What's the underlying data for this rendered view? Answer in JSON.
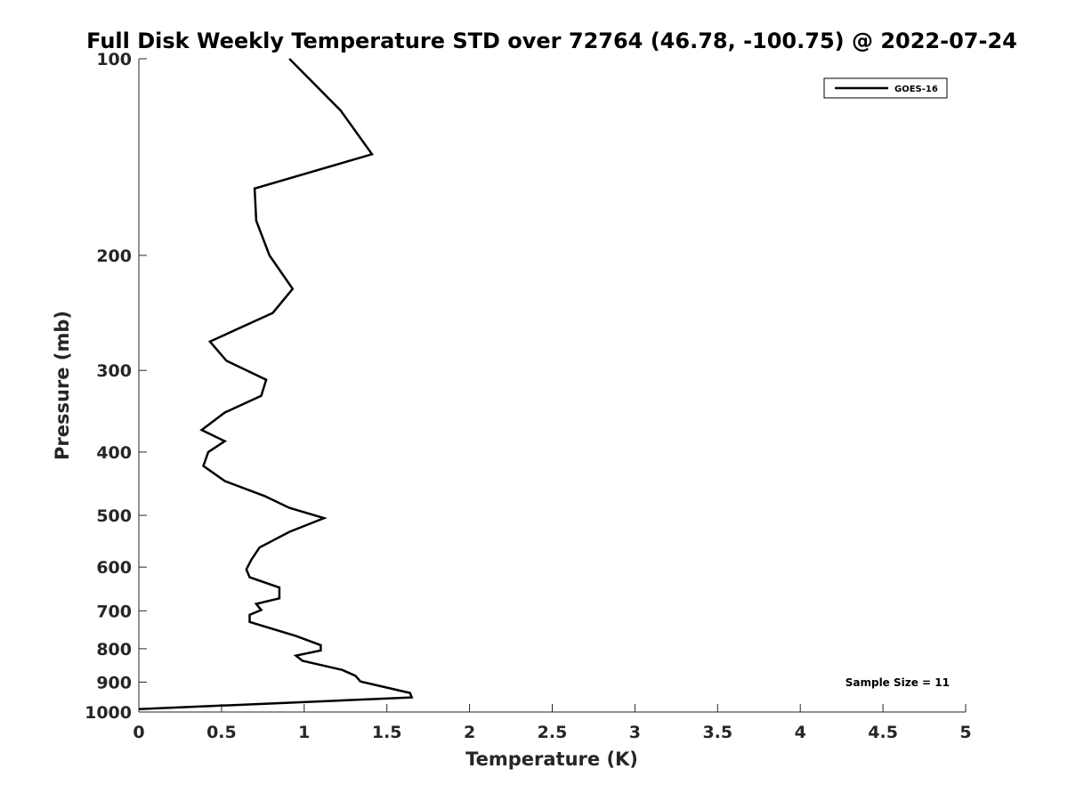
{
  "chart_data": {
    "type": "line",
    "title": "Full Disk Weekly Temperature STD over 72764 (46.78, -100.75) @ 2022-07-24",
    "xlabel": "Temperature (K)",
    "ylabel": "Pressure (mb)",
    "xlim": [
      0,
      5
    ],
    "ylim": [
      100,
      1000
    ],
    "y_scale": "log",
    "y_reversed": true,
    "x_ticks": [
      "0",
      "0.5",
      "1",
      "1.5",
      "2",
      "2.5",
      "3",
      "3.5",
      "4",
      "4.5",
      "5"
    ],
    "y_ticks": [
      "100",
      "200",
      "300",
      "400",
      "500",
      "600",
      "700",
      "800",
      "900",
      "1000"
    ],
    "grid": false,
    "legend_position": "top-right",
    "series": [
      {
        "name": "GOES-16",
        "color": "#000000",
        "x": [
          0.91,
          1.22,
          1.41,
          0.7,
          0.71,
          0.79,
          0.93,
          0.81,
          0.43,
          0.53,
          0.77,
          0.74,
          0.52,
          0.38,
          0.52,
          0.42,
          0.39,
          0.52,
          0.76,
          0.91,
          1.12,
          0.91,
          0.73,
          0.68,
          0.65,
          0.67,
          0.85,
          0.85,
          0.71,
          0.74,
          0.67,
          0.67,
          0.95,
          1.1,
          1.1,
          0.95,
          0.99,
          1.23,
          1.31,
          1.34,
          1.64,
          1.65,
          0.0
        ],
        "y": [
          100,
          120,
          140,
          158,
          177,
          200,
          225,
          245,
          271,
          290,
          310,
          328,
          348,
          370,
          385,
          400,
          420,
          443,
          467,
          487,
          505,
          530,
          560,
          585,
          605,
          622,
          645,
          670,
          683,
          698,
          710,
          728,
          765,
          790,
          805,
          820,
          835,
          862,
          880,
          898,
          935,
          950,
          990
        ]
      }
    ],
    "annotations": [
      "Sample Size = 11"
    ]
  }
}
